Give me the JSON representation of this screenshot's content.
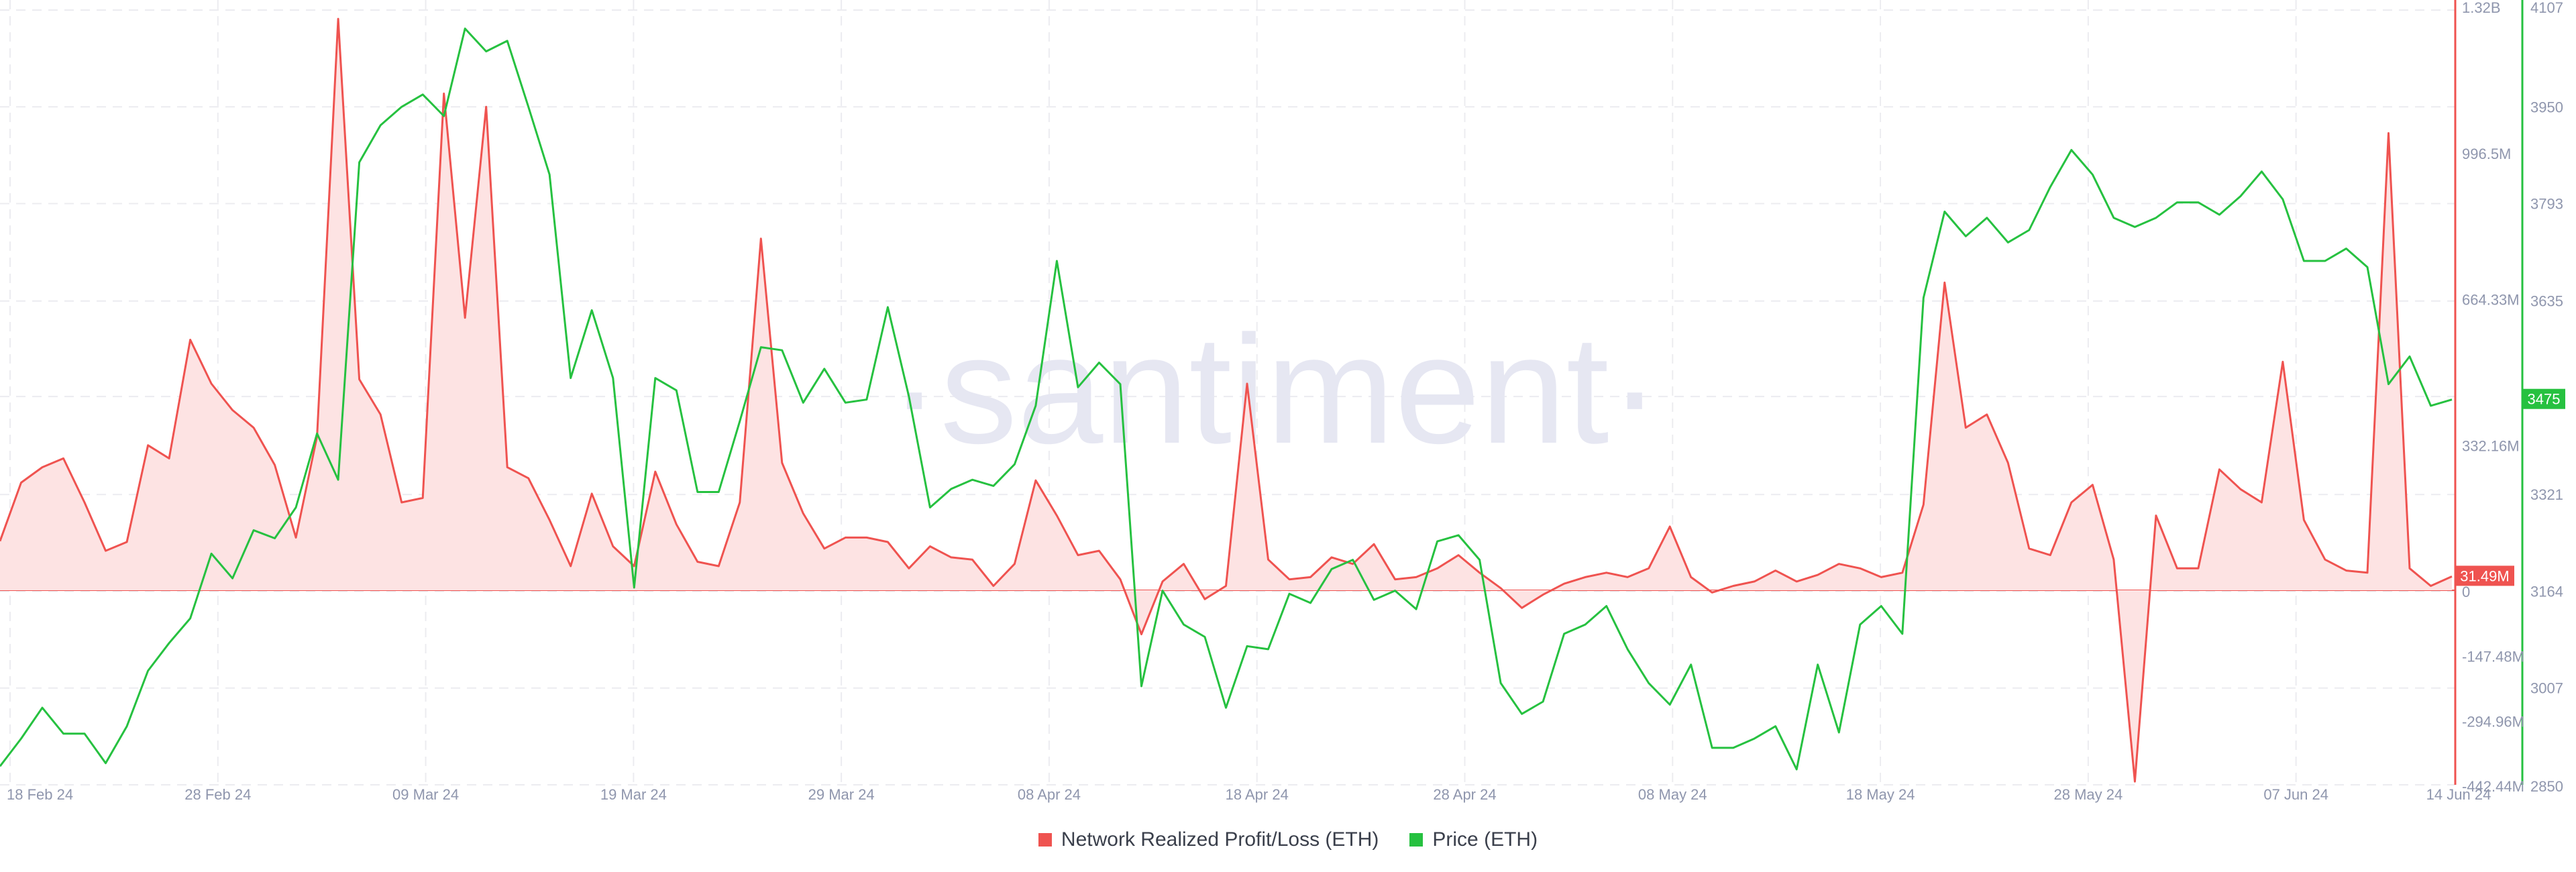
{
  "chart_data": {
    "type": "line",
    "watermark": "santiment",
    "x_tick_labels": [
      "18 Feb 24",
      "28 Feb 24",
      "09 Mar 24",
      "19 Mar 24",
      "29 Mar 24",
      "08 Apr 24",
      "18 Apr 24",
      "28 Apr 24",
      "08 May 24",
      "18 May 24",
      "28 May 24",
      "07 Jun 24",
      "14 Jun 24"
    ],
    "y_left": {
      "ticks": [
        -442.44,
        -294.96,
        -147.48,
        0,
        332.16,
        664.33,
        996.5,
        1320
      ],
      "tick_labels": [
        "-442.44M",
        "-294.96M",
        "-147.48M",
        "0",
        "332.16M",
        "664.33M",
        "996.5M",
        "1.32B"
      ],
      "range": [
        -442.44,
        1320
      ]
    },
    "y_right": {
      "ticks": [
        2850,
        3007,
        3164,
        3321,
        3480,
        3635,
        3793,
        3950,
        4107
      ],
      "tick_labels": [
        "2850",
        "3007",
        "3164",
        "3321",
        "3480",
        "3635",
        "3793",
        "3950",
        "4107"
      ],
      "range": [
        2850,
        4107
      ]
    },
    "series": [
      {
        "name": "Network Realized Profit/Loss (ETH)",
        "axis": "left",
        "color": "#ef5350",
        "fill": "#fde3e3",
        "last_value_label": "31.49M",
        "values": [
          112,
          245,
          280,
          300,
          200,
          90,
          110,
          330,
          300,
          570,
          470,
          410,
          370,
          285,
          120,
          350,
          1300,
          480,
          400,
          200,
          210,
          1130,
          620,
          1100,
          280,
          255,
          160,
          55,
          220,
          100,
          55,
          270,
          150,
          65,
          55,
          200,
          800,
          290,
          175,
          95,
          120,
          120,
          110,
          50,
          100,
          75,
          70,
          10,
          60,
          250,
          170,
          80,
          90,
          25,
          -100,
          20,
          60,
          -20,
          10,
          470,
          70,
          25,
          30,
          75,
          60,
          105,
          25,
          30,
          50,
          80,
          40,
          5,
          -40,
          -10,
          15,
          30,
          40,
          30,
          50,
          145,
          30,
          -5,
          10,
          20,
          45,
          20,
          35,
          60,
          50,
          30,
          40,
          195,
          700,
          370,
          400,
          290,
          95,
          80,
          200,
          240,
          70,
          -435,
          170,
          50,
          50,
          275,
          230,
          200,
          520,
          160,
          70,
          45,
          40,
          1040,
          50,
          10,
          31.49
        ]
      },
      {
        "name": "Price (ETH)",
        "axis": "right",
        "color": "#26c140",
        "values": [
          2880,
          2925,
          2975,
          2933,
          2933,
          2885,
          2945,
          3035,
          3080,
          3120,
          3225,
          3185,
          3263,
          3250,
          3300,
          3420,
          3345,
          3860,
          3920,
          3950,
          3970,
          3935,
          4077,
          4040,
          4057,
          3950,
          3840,
          3510,
          3620,
          3510,
          3170,
          3510,
          3490,
          3325,
          3325,
          3440,
          3560,
          3555,
          3470,
          3525,
          3470,
          3475,
          3625,
          3480,
          3300,
          3330,
          3345,
          3335,
          3370,
          3465,
          3700,
          3495,
          3535,
          3500,
          3010,
          3165,
          3110,
          3090,
          2975,
          3075,
          3070,
          3160,
          3145,
          3200,
          3215,
          3150,
          3165,
          3135,
          3245,
          3255,
          3215,
          3015,
          2965,
          2985,
          3095,
          3110,
          3140,
          3070,
          3015,
          2980,
          3045,
          2910,
          2910,
          2925,
          2945,
          2875,
          3045,
          2935,
          3110,
          3140,
          3095,
          3640,
          3780,
          3740,
          3770,
          3730,
          3750,
          3820,
          3880,
          3840,
          3770,
          3755,
          3770,
          3795,
          3795,
          3775,
          3805,
          3845,
          3800,
          3700,
          3700,
          3720,
          3690,
          3500,
          3545,
          3465,
          3475
        ]
      }
    ],
    "legend_position": "bottom-center",
    "grid": true
  },
  "legend": {
    "items": [
      {
        "label": "Network Realized Profit/Loss (ETH)",
        "color": "#ef5350"
      },
      {
        "label": "Price (ETH)",
        "color": "#26c140"
      }
    ]
  },
  "colors": {
    "profit_line": "#ef5350",
    "price_line": "#26c140",
    "grid": "#ececf0",
    "axis_text": "#8f96ad",
    "watermark": "#e6e7f2"
  }
}
